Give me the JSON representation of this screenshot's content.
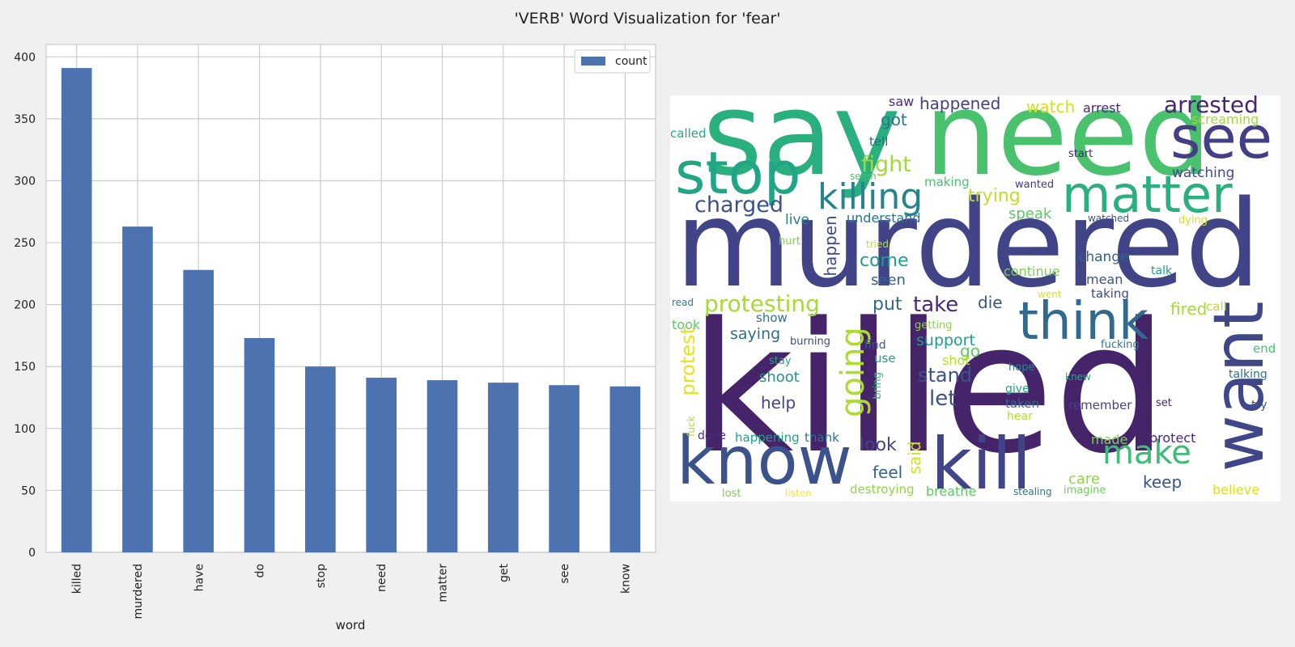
{
  "suptitle": "'VERB' Word Visualization for 'fear'",
  "chart_data": [
    {
      "type": "bar",
      "categories": [
        "killed",
        "murdered",
        "have",
        "do",
        "stop",
        "need",
        "matter",
        "get",
        "see",
        "know"
      ],
      "series": [
        {
          "name": "count",
          "values": [
            391,
            263,
            228,
            173,
            150,
            141,
            139,
            137,
            135,
            134
          ],
          "color": "#4c72b0"
        }
      ],
      "xlabel": "word",
      "ylabel": "",
      "ylim": [
        0,
        410
      ],
      "yticks": [
        0,
        50,
        100,
        150,
        200,
        250,
        300,
        350,
        400
      ],
      "grid": true,
      "legend": "top-right"
    }
  ],
  "wordcloud": {
    "words": [
      {
        "text": "say",
        "size": 142,
        "color": "#2ab07f"
      },
      {
        "text": "need",
        "size": 142,
        "color": "#4ac16d"
      },
      {
        "text": "see",
        "size": 72,
        "color": "#433e85"
      },
      {
        "text": "stop",
        "size": 72,
        "color": "#21a685"
      },
      {
        "text": "matter",
        "size": 62,
        "color": "#2ab07f"
      },
      {
        "text": "killing",
        "size": 44,
        "color": "#25858e"
      },
      {
        "text": "charged",
        "size": 27,
        "color": "#3b528b"
      },
      {
        "text": "fight",
        "size": 27,
        "color": "#a0da39"
      },
      {
        "text": "murdered",
        "size": 148,
        "color": "#414487"
      },
      {
        "text": "killed",
        "size": 222,
        "color": "#46246a"
      },
      {
        "text": "think",
        "size": 64,
        "color": "#306a8e"
      },
      {
        "text": "want",
        "size": 86,
        "color": "#3f4788"
      },
      {
        "text": "know",
        "size": 82,
        "color": "#3b528b"
      },
      {
        "text": "kill",
        "size": 88,
        "color": "#414487"
      },
      {
        "text": "make",
        "size": 40,
        "color": "#3cbc75"
      },
      {
        "text": "going",
        "size": 40,
        "color": "#addc30"
      },
      {
        "text": "protesting",
        "size": 28,
        "color": "#a5db36"
      },
      {
        "text": "take",
        "size": 26,
        "color": "#482878"
      },
      {
        "text": "protest",
        "size": 24,
        "color": "#e5e419"
      },
      {
        "text": "arrested",
        "size": 28,
        "color": "#482475"
      },
      {
        "text": "happened",
        "size": 20,
        "color": "#433e85"
      },
      {
        "text": "watch",
        "size": 20,
        "color": "#d0e11c"
      },
      {
        "text": "arrest",
        "size": 16,
        "color": "#482878"
      },
      {
        "text": "saw",
        "size": 16,
        "color": "#472d7b"
      },
      {
        "text": "screaming",
        "size": 16,
        "color": "#a0da39"
      },
      {
        "text": "got",
        "size": 20,
        "color": "#2a788e"
      },
      {
        "text": "called",
        "size": 15,
        "color": "#22a884"
      },
      {
        "text": "tell",
        "size": 15,
        "color": "#33638d"
      },
      {
        "text": "start",
        "size": 13,
        "color": "#481f70"
      },
      {
        "text": "seem",
        "size": 12,
        "color": "#4ac16d"
      },
      {
        "text": "wanted",
        "size": 13,
        "color": "#453882"
      },
      {
        "text": "watching",
        "size": 17,
        "color": "#3e4a89"
      },
      {
        "text": "making",
        "size": 15,
        "color": "#48c16e"
      },
      {
        "text": "trying",
        "size": 22,
        "color": "#bddf26"
      },
      {
        "text": "live",
        "size": 17,
        "color": "#287c8e"
      },
      {
        "text": "understand",
        "size": 16,
        "color": "#2c728e"
      },
      {
        "text": "speak",
        "size": 18,
        "color": "#5ec962"
      },
      {
        "text": "watched",
        "size": 12,
        "color": "#3b528b"
      },
      {
        "text": "dying",
        "size": 13,
        "color": "#d8e219"
      },
      {
        "text": "hurt",
        "size": 13,
        "color": "#7ad151"
      },
      {
        "text": "tried",
        "size": 12,
        "color": "#bddf26"
      },
      {
        "text": "happen",
        "size": 20,
        "color": "#3e4a89"
      },
      {
        "text": "come",
        "size": 22,
        "color": "#1f9e89"
      },
      {
        "text": "change",
        "size": 17,
        "color": "#355f8d"
      },
      {
        "text": "continue",
        "size": 16,
        "color": "#7ad151"
      },
      {
        "text": "talk",
        "size": 14,
        "color": "#1fa088"
      },
      {
        "text": "seen",
        "size": 18,
        "color": "#33638d"
      },
      {
        "text": "mean",
        "size": 16,
        "color": "#3b528b"
      },
      {
        "text": "went",
        "size": 12,
        "color": "#d8e219"
      },
      {
        "text": "taking",
        "size": 15,
        "color": "#404688"
      },
      {
        "text": "read",
        "size": 12,
        "color": "#2a788e"
      },
      {
        "text": "put",
        "size": 22,
        "color": "#31688e"
      },
      {
        "text": "die",
        "size": 20,
        "color": "#3b528b"
      },
      {
        "text": "fired",
        "size": 20,
        "color": "#a5db36"
      },
      {
        "text": "call",
        "size": 15,
        "color": "#b5de2b"
      },
      {
        "text": "show",
        "size": 15,
        "color": "#2c728e"
      },
      {
        "text": "took",
        "size": 16,
        "color": "#5ec962"
      },
      {
        "text": "getting",
        "size": 13,
        "color": "#8fd744"
      },
      {
        "text": "saying",
        "size": 19,
        "color": "#2d708e"
      },
      {
        "text": "burning",
        "size": 13,
        "color": "#3e4c8a"
      },
      {
        "text": "support",
        "size": 19,
        "color": "#1f9e89"
      },
      {
        "text": "find",
        "size": 14,
        "color": "#38598c"
      },
      {
        "text": "fucking",
        "size": 13,
        "color": "#2a788e"
      },
      {
        "text": "end",
        "size": 15,
        "color": "#48c16e"
      },
      {
        "text": "go",
        "size": 20,
        "color": "#5ec962"
      },
      {
        "text": "use",
        "size": 15,
        "color": "#1fa188"
      },
      {
        "text": "stay",
        "size": 13,
        "color": "#22a884"
      },
      {
        "text": "shot",
        "size": 16,
        "color": "#b5de2b"
      },
      {
        "text": "hope",
        "size": 13,
        "color": "#23898e"
      },
      {
        "text": "stand",
        "size": 24,
        "color": "#3b528b"
      },
      {
        "text": "shoot",
        "size": 18,
        "color": "#21918c"
      },
      {
        "text": "bring",
        "size": 13,
        "color": "#3cbc75"
      },
      {
        "text": "knew",
        "size": 12,
        "color": "#22a884"
      },
      {
        "text": "talking",
        "size": 14,
        "color": "#2c728e"
      },
      {
        "text": "give",
        "size": 14,
        "color": "#22a884"
      },
      {
        "text": "let",
        "size": 26,
        "color": "#3b528b"
      },
      {
        "text": "help",
        "size": 20,
        "color": "#414487"
      },
      {
        "text": "taken",
        "size": 15,
        "color": "#31688e"
      },
      {
        "text": "remember",
        "size": 15,
        "color": "#414487"
      },
      {
        "text": "set",
        "size": 13,
        "color": "#482475"
      },
      {
        "text": "try",
        "size": 14,
        "color": "#3b528b"
      },
      {
        "text": "hear",
        "size": 14,
        "color": "#b5de2b"
      },
      {
        "text": "fuck",
        "size": 12,
        "color": "#b5de2b"
      },
      {
        "text": "done",
        "size": 14,
        "color": "#472c7a"
      },
      {
        "text": "happening",
        "size": 15,
        "color": "#1fa088"
      },
      {
        "text": "thank",
        "size": 15,
        "color": "#2d708e"
      },
      {
        "text": "protect",
        "size": 16,
        "color": "#482878"
      },
      {
        "text": "made",
        "size": 16,
        "color": "#7ad151"
      },
      {
        "text": "look",
        "size": 22,
        "color": "#414487"
      },
      {
        "text": "said",
        "size": 20,
        "color": "#d0e11c"
      },
      {
        "text": "feel",
        "size": 20,
        "color": "#33638d"
      },
      {
        "text": "care",
        "size": 18,
        "color": "#8fd744"
      },
      {
        "text": "keep",
        "size": 20,
        "color": "#3b528b"
      },
      {
        "text": "lost",
        "size": 13,
        "color": "#7ad151"
      },
      {
        "text": "listen",
        "size": 12,
        "color": "#fde725"
      },
      {
        "text": "destroying",
        "size": 15,
        "color": "#8fd744"
      },
      {
        "text": "breathe",
        "size": 16,
        "color": "#5ec962"
      },
      {
        "text": "stealing",
        "size": 12,
        "color": "#2a788e"
      },
      {
        "text": "imagine",
        "size": 13,
        "color": "#6ece58"
      },
      {
        "text": "believe",
        "size": 16,
        "color": "#d8e219"
      }
    ]
  }
}
